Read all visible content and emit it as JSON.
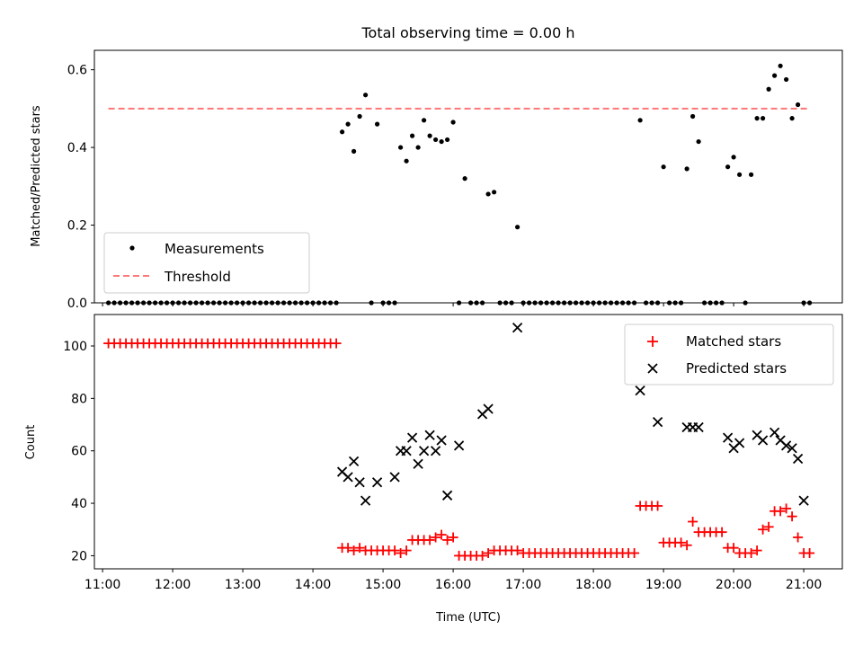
{
  "chart_data": [
    {
      "type": "scatter",
      "title": "Total observing time = 0.00 h",
      "xlabel": "",
      "ylabel": "Matched/Predicted stars",
      "xlim": [
        "10:53",
        "21:33"
      ],
      "ylim": [
        0,
        0.65
      ],
      "yticks": [
        0.0,
        0.2,
        0.4,
        0.6
      ],
      "ytick_labels": [
        "0.0",
        "0.2",
        "0.4",
        "0.6"
      ],
      "xticks": [
        "11:00",
        "12:00",
        "13:00",
        "14:00",
        "15:00",
        "16:00",
        "17:00",
        "18:00",
        "19:00",
        "20:00",
        "21:00"
      ],
      "legend_position": "lower-left",
      "series": [
        {
          "name": "Measurements",
          "marker": "dot",
          "color": "#000000",
          "x": [
            "11:05",
            "11:10",
            "11:15",
            "11:20",
            "11:25",
            "11:30",
            "11:35",
            "11:40",
            "11:45",
            "11:50",
            "11:55",
            "12:00",
            "12:05",
            "12:10",
            "12:15",
            "12:20",
            "12:25",
            "12:30",
            "12:35",
            "12:40",
            "12:45",
            "12:50",
            "12:55",
            "13:00",
            "13:05",
            "13:10",
            "13:15",
            "13:20",
            "13:25",
            "13:30",
            "13:35",
            "13:40",
            "13:45",
            "13:50",
            "13:55",
            "14:00",
            "14:05",
            "14:10",
            "14:15",
            "14:20",
            "14:25",
            "14:30",
            "14:35",
            "14:40",
            "14:45",
            "14:50",
            "14:55",
            "15:00",
            "15:05",
            "15:10",
            "15:15",
            "15:20",
            "15:25",
            "15:30",
            "15:35",
            "15:40",
            "15:45",
            "15:50",
            "15:55",
            "16:00",
            "16:05",
            "16:10",
            "16:15",
            "16:20",
            "16:25",
            "16:30",
            "16:35",
            "16:40",
            "16:45",
            "16:50",
            "16:55",
            "17:00",
            "17:05",
            "17:10",
            "17:15",
            "17:20",
            "17:25",
            "17:30",
            "17:35",
            "17:40",
            "17:45",
            "17:50",
            "17:55",
            "18:00",
            "18:05",
            "18:10",
            "18:15",
            "18:20",
            "18:25",
            "18:30",
            "18:35",
            "18:40",
            "18:45",
            "18:50",
            "18:55",
            "19:00",
            "19:05",
            "19:10",
            "19:15",
            "19:20",
            "19:25",
            "19:30",
            "19:35",
            "19:40",
            "19:45",
            "19:50",
            "19:55",
            "20:00",
            "20:05",
            "20:10",
            "20:15",
            "20:20",
            "20:25",
            "20:30",
            "20:35",
            "20:40",
            "20:45",
            "20:50",
            "20:55",
            "21:00",
            "21:05"
          ],
          "y": [
            0,
            0,
            0,
            0,
            0,
            0,
            0,
            0,
            0,
            0,
            0,
            0,
            0,
            0,
            0,
            0,
            0,
            0,
            0,
            0,
            0,
            0,
            0,
            0,
            0,
            0,
            0,
            0,
            0,
            0,
            0,
            0,
            0,
            0,
            0,
            0,
            0,
            0,
            0,
            0,
            0.44,
            0.46,
            0.39,
            0.48,
            0.535,
            0,
            0.46,
            0,
            0,
            0,
            0.4,
            0.365,
            0.43,
            0.4,
            0.47,
            0.43,
            0.42,
            0.415,
            0.42,
            0.465,
            0,
            0.32,
            0,
            0,
            0,
            0.28,
            0.285,
            0,
            0,
            0,
            0.195,
            0,
            0,
            0,
            0,
            0,
            0,
            0,
            0,
            0,
            0,
            0,
            0,
            0,
            0,
            0,
            0,
            0,
            0,
            0,
            0,
            0.47,
            0,
            0,
            0,
            0.35,
            0,
            0,
            0,
            0.345,
            0.48,
            0.415,
            0,
            0,
            0,
            0,
            0.35,
            0.375,
            0.33,
            0,
            0.33,
            0.475,
            0.475,
            0.55,
            0.585,
            0.61,
            0.575,
            0.475,
            0.51,
            0,
            0
          ]
        },
        {
          "name": "Threshold",
          "marker": "dashed-line",
          "color": "#ff7777",
          "x": [
            "11:05",
            "21:05"
          ],
          "y": [
            0.5,
            0.5
          ]
        }
      ]
    },
    {
      "type": "scatter",
      "title": "",
      "xlabel": "Time (UTC)",
      "ylabel": "Count",
      "xlim": [
        "10:53",
        "21:33"
      ],
      "ylim": [
        15,
        112
      ],
      "yticks": [
        20,
        40,
        60,
        80,
        100
      ],
      "ytick_labels": [
        "20",
        "40",
        "60",
        "80",
        "100"
      ],
      "xticks": [
        "11:00",
        "12:00",
        "13:00",
        "14:00",
        "15:00",
        "16:00",
        "17:00",
        "18:00",
        "19:00",
        "20:00",
        "21:00"
      ],
      "xtick_labels": [
        "11:00",
        "12:00",
        "13:00",
        "14:00",
        "15:00",
        "16:00",
        "17:00",
        "18:00",
        "19:00",
        "20:00",
        "21:00"
      ],
      "legend_position": "upper-right",
      "series": [
        {
          "name": "Matched stars",
          "marker": "plus",
          "color": "#ff0000",
          "x": [
            "11:05",
            "11:10",
            "11:15",
            "11:20",
            "11:25",
            "11:30",
            "11:35",
            "11:40",
            "11:45",
            "11:50",
            "11:55",
            "12:00",
            "12:05",
            "12:10",
            "12:15",
            "12:20",
            "12:25",
            "12:30",
            "12:35",
            "12:40",
            "12:45",
            "12:50",
            "12:55",
            "13:00",
            "13:05",
            "13:10",
            "13:15",
            "13:20",
            "13:25",
            "13:30",
            "13:35",
            "13:40",
            "13:45",
            "13:50",
            "13:55",
            "14:00",
            "14:05",
            "14:10",
            "14:15",
            "14:20",
            "14:25",
            "14:30",
            "14:35",
            "14:40",
            "14:45",
            "14:50",
            "14:55",
            "15:00",
            "15:05",
            "15:10",
            "15:15",
            "15:20",
            "15:25",
            "15:30",
            "15:35",
            "15:40",
            "15:45",
            "15:50",
            "15:55",
            "16:00",
            "16:05",
            "16:10",
            "16:15",
            "16:20",
            "16:25",
            "16:30",
            "16:35",
            "16:40",
            "16:45",
            "16:50",
            "16:55",
            "17:00",
            "17:05",
            "17:10",
            "17:15",
            "17:20",
            "17:25",
            "17:30",
            "17:35",
            "17:40",
            "17:45",
            "17:50",
            "17:55",
            "18:00",
            "18:05",
            "18:10",
            "18:15",
            "18:20",
            "18:25",
            "18:30",
            "18:35",
            "18:40",
            "18:45",
            "18:50",
            "18:55",
            "19:00",
            "19:05",
            "19:10",
            "19:15",
            "19:20",
            "19:25",
            "19:30",
            "19:35",
            "19:40",
            "19:45",
            "19:50",
            "19:55",
            "20:00",
            "20:05",
            "20:10",
            "20:15",
            "20:20",
            "20:25",
            "20:30",
            "20:35",
            "20:40",
            "20:45",
            "20:50",
            "20:55",
            "21:00",
            "21:05"
          ],
          "y": [
            101,
            101,
            101,
            101,
            101,
            101,
            101,
            101,
            101,
            101,
            101,
            101,
            101,
            101,
            101,
            101,
            101,
            101,
            101,
            101,
            101,
            101,
            101,
            101,
            101,
            101,
            101,
            101,
            101,
            101,
            101,
            101,
            101,
            101,
            101,
            101,
            101,
            101,
            101,
            101,
            23,
            23,
            22,
            23,
            22,
            22,
            22,
            22,
            22,
            22,
            21,
            22,
            26,
            26,
            26,
            26,
            27,
            28,
            26,
            27,
            20,
            20,
            20,
            20,
            20,
            21,
            22,
            22,
            22,
            22,
            22,
            21,
            21,
            21,
            21,
            21,
            21,
            21,
            21,
            21,
            21,
            21,
            21,
            21,
            21,
            21,
            21,
            21,
            21,
            21,
            21,
            39,
            39,
            39,
            39,
            25,
            25,
            25,
            25,
            24,
            33,
            29,
            29,
            29,
            29,
            29,
            23,
            23,
            21,
            21,
            21,
            22,
            30,
            31,
            37,
            37,
            38,
            35,
            27,
            21,
            21
          ]
        },
        {
          "name": "Predicted stars",
          "marker": "x",
          "color": "#000000",
          "x": [
            "14:25",
            "14:30",
            "14:35",
            "14:40",
            "14:45",
            "14:55",
            "15:10",
            "15:15",
            "15:20",
            "15:25",
            "15:30",
            "15:35",
            "15:40",
            "15:45",
            "15:50",
            "15:55",
            "16:05",
            "16:25",
            "16:30",
            "16:55",
            "18:40",
            "18:55",
            "19:20",
            "19:25",
            "19:30",
            "19:55",
            "20:00",
            "20:05",
            "20:20",
            "20:25",
            "20:35",
            "20:40",
            "20:45",
            "20:50",
            "20:55",
            "21:00"
          ],
          "y": [
            52,
            50,
            56,
            48,
            41,
            48,
            50,
            60,
            60,
            65,
            55,
            60,
            66,
            60,
            64,
            43,
            62,
            74,
            76,
            107,
            83,
            71,
            69,
            69,
            69,
            65,
            61,
            63,
            66,
            64,
            67,
            64,
            62,
            61,
            57,
            41
          ]
        }
      ]
    }
  ]
}
